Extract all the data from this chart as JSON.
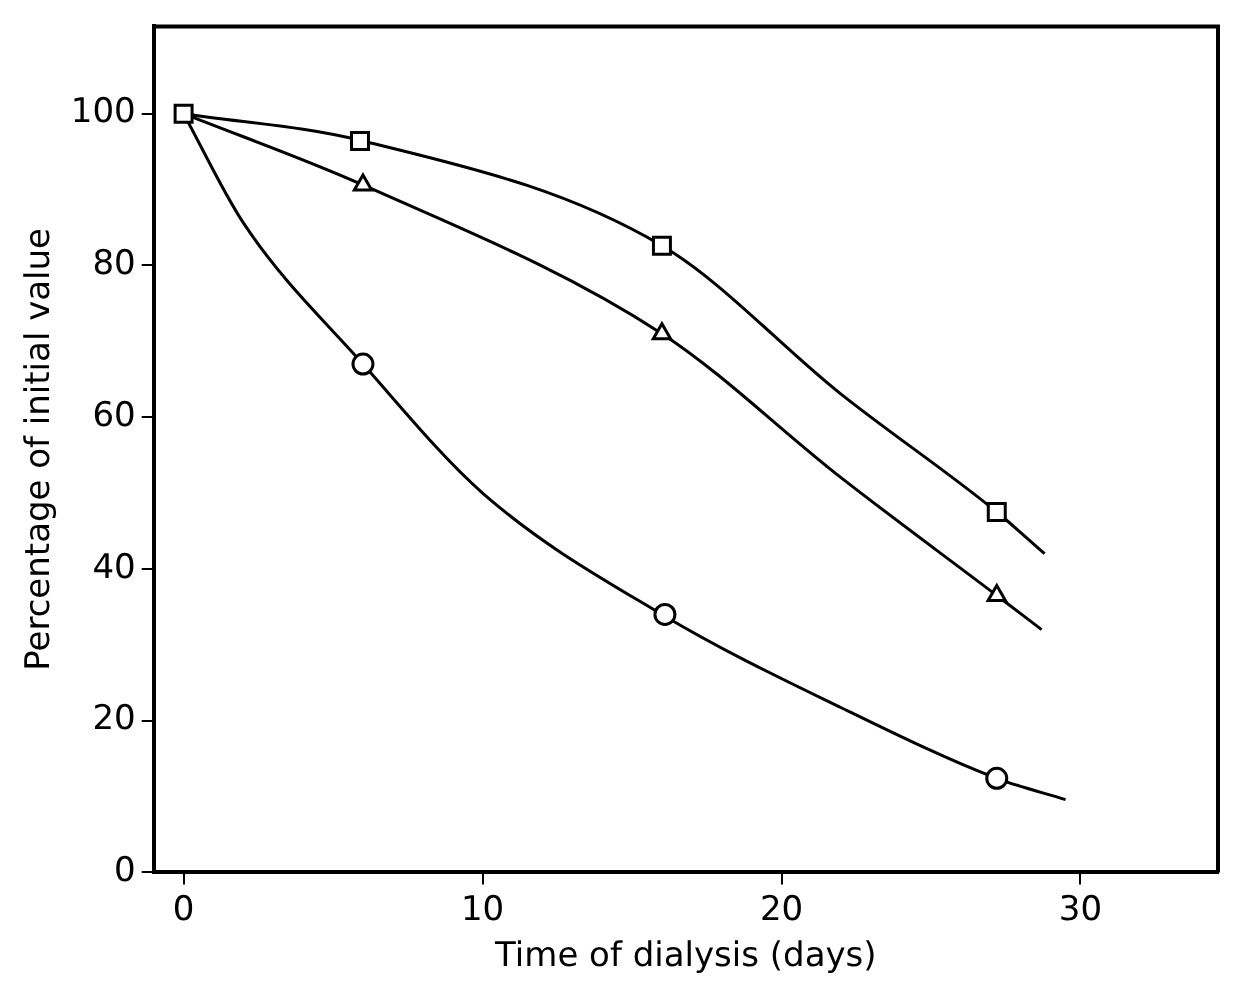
{
  "chart_data": {
    "type": "scatter",
    "xlabel": "Time of dialysis (days)",
    "ylabel": "Percentage of initial value",
    "xlim": [
      -1,
      34.6
    ],
    "xticks": [
      0,
      10,
      20,
      30
    ],
    "ylim": [
      0,
      111.5
    ],
    "yticks": [
      0,
      20,
      40,
      60,
      80,
      100
    ],
    "grid": false,
    "legend": false,
    "series": [
      {
        "type": "line",
        "color": "#000000",
        "marker": "none",
        "x": [
          0,
          6,
          16,
          22,
          27.2,
          28.8
        ],
        "values": [
          100,
          96.4,
          82.6,
          63,
          47.5,
          42
        ]
      },
      {
        "type": "line",
        "color": "#000000",
        "marker": "none",
        "x": [
          0,
          6,
          16,
          22,
          27.2,
          28.7
        ],
        "values": [
          100,
          90.6,
          71,
          52,
          36.5,
          32
        ]
      },
      {
        "type": "line",
        "color": "#000000",
        "marker": "none",
        "x": [
          0,
          2,
          6,
          10,
          16,
          22,
          27.2,
          29.5
        ],
        "values": [
          100,
          85.6,
          67,
          50,
          34,
          21.7,
          12.4,
          9.6
        ]
      },
      {
        "color": "#000000",
        "marker": "square",
        "x": [
          0,
          5.9,
          16,
          27.2
        ],
        "values": [
          100,
          96.4,
          82.6,
          47.5
        ]
      },
      {
        "color": "#000000",
        "marker": "triangle",
        "x": [
          6,
          16,
          27.2
        ],
        "values": [
          90.6,
          71,
          36.5
        ]
      },
      {
        "color": "#000000",
        "marker": "circle",
        "x": [
          6,
          16.1,
          27.2
        ],
        "values": [
          67,
          34,
          12.4
        ]
      }
    ]
  }
}
